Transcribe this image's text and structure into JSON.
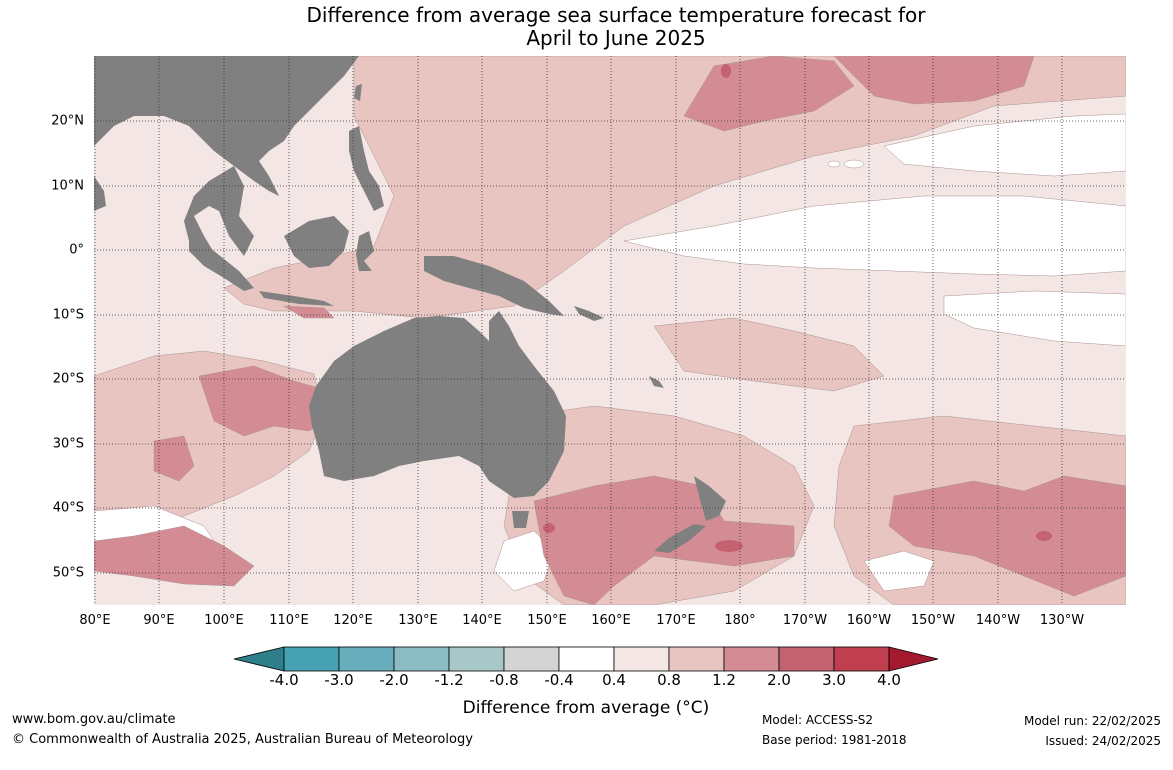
{
  "title": {
    "line1": "Difference from average sea surface temperature forecast for",
    "line2": "April to June 2025"
  },
  "map": {
    "lat_labels": [
      "20°N",
      "10°N",
      "0°",
      "10°S",
      "20°S",
      "30°S",
      "40°S",
      "50°S"
    ],
    "lon_labels": [
      "80°E",
      "90°E",
      "100°E",
      "110°E",
      "120°E",
      "130°E",
      "140°E",
      "150°E",
      "160°E",
      "170°E",
      "180°",
      "170°W",
      "160°W",
      "150°W",
      "140°W",
      "130°W"
    ],
    "land_color": "#808080"
  },
  "colorbar": {
    "title": "Difference from average (°C)",
    "ticks": [
      "-4.0",
      "-3.0",
      "-2.0",
      "-1.2",
      "-0.8",
      "-0.4",
      "0.4",
      "0.8",
      "1.2",
      "2.0",
      "3.0",
      "4.0"
    ],
    "colors": [
      "#2e7f8a",
      "#46a1b3",
      "#69aebc",
      "#8bbcc3",
      "#a8c7c9",
      "#d4d4d4",
      "#ffffff",
      "#f4e6e5",
      "#e9c5c2",
      "#d48c94",
      "#c56270",
      "#bf3f4e",
      "#a3192e"
    ]
  },
  "footer": {
    "url": "www.bom.gov.au/climate",
    "copyright": "© Commonwealth of Australia 2025, Australian Bureau of Meteorology",
    "model": "Model: ACCESS-S2",
    "base_period": "Base period: 1981-2018",
    "model_run": "Model run: 22/02/2025",
    "issued": "Issued: 24/02/2025"
  }
}
